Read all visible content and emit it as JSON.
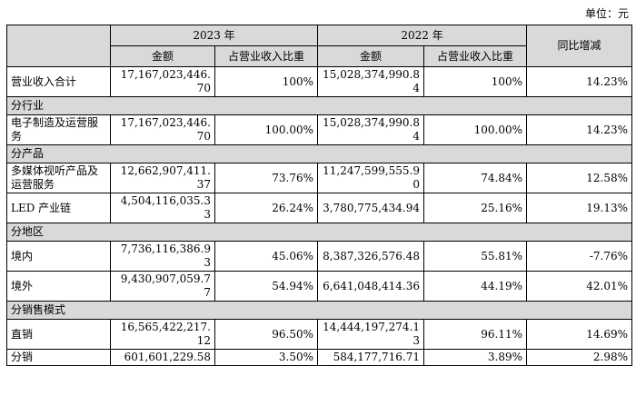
{
  "unit_label": "单位：元",
  "header": {
    "year_2023": "2023 年",
    "year_2022": "2022 年",
    "yoy_change": "同比增减",
    "amount": "金额",
    "ratio": "占营业收入比重"
  },
  "rows": [
    {
      "type": "data",
      "label": "营业收入合计",
      "amt23": "17,167,023,446.70",
      "pct23": "100%",
      "amt22": "15,028,374,990.84",
      "pct22": "100%",
      "yoy": "14.23%"
    },
    {
      "type": "section",
      "label": "分行业"
    },
    {
      "type": "data",
      "label": "电子制造及运营服务",
      "amt23": "17,167,023,446.70",
      "pct23": "100.00%",
      "amt22": "15,028,374,990.84",
      "pct22": "100.00%",
      "yoy": "14.23%"
    },
    {
      "type": "section",
      "label": "分产品"
    },
    {
      "type": "data",
      "label": "多媒体视听产品及运营服务",
      "amt23": "12,662,907,411.37",
      "pct23": "73.76%",
      "amt22": "11,247,599,555.90",
      "pct22": "74.84%",
      "yoy": "12.58%"
    },
    {
      "type": "data",
      "label": "LED 产业链",
      "amt23": "4,504,116,035.33",
      "pct23": "26.24%",
      "amt22": "3,780,775,434.94",
      "pct22": "25.16%",
      "yoy": "19.13%"
    },
    {
      "type": "section",
      "label": "分地区"
    },
    {
      "type": "data",
      "label": "境内",
      "amt23": "7,736,116,386.93",
      "pct23": "45.06%",
      "amt22": "8,387,326,576.48",
      "pct22": "55.81%",
      "yoy": "-7.76%"
    },
    {
      "type": "data",
      "label": "境外",
      "amt23": "9,430,907,059.77",
      "pct23": "54.94%",
      "amt22": "6,641,048,414.36",
      "pct22": "44.19%",
      "yoy": "42.01%"
    },
    {
      "type": "section",
      "label": "分销售模式"
    },
    {
      "type": "data",
      "label": "直销",
      "amt23": "16,565,422,217.12",
      "pct23": "96.50%",
      "amt22": "14,444,197,274.13",
      "pct22": "96.11%",
      "yoy": "14.69%"
    },
    {
      "type": "data",
      "label": "分销",
      "amt23": "601,601,229.58",
      "pct23": "3.50%",
      "amt22": "584,177,716.71",
      "pct22": "3.89%",
      "yoy": "2.98%",
      "single": true
    }
  ]
}
